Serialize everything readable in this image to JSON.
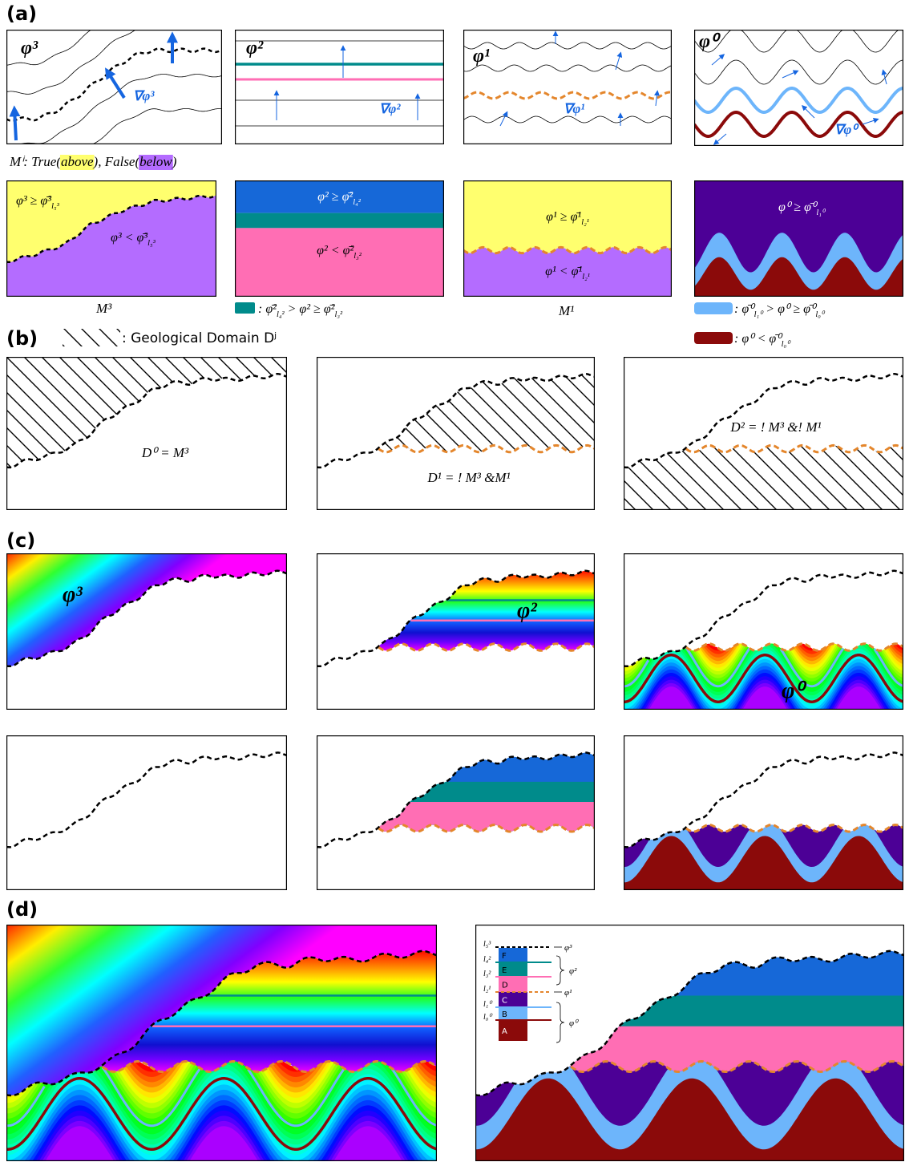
{
  "panel_labels": [
    "(a)",
    "(b)",
    "(c)",
    "(d)"
  ],
  "a": {
    "fields": [
      {
        "label": "φ³",
        "gradient": "∇φ³"
      },
      {
        "label": "φ²",
        "gradient": "∇φ²"
      },
      {
        "label": "φ¹",
        "gradient": "∇φ¹"
      },
      {
        "label": "φ⁰",
        "gradient": "∇φ⁰"
      }
    ],
    "mask_caption": [
      "Mⁱ: True(",
      "above",
      "), False(",
      "below",
      ")"
    ],
    "masks": [
      {
        "above": [
          "φ³ ≥ φ̄³",
          "l₅³"
        ],
        "below": [
          "φ³ < φ̄³",
          "l₅³"
        ],
        "caption": "M³"
      },
      {
        "above": [
          "φ² ≥ φ̄²",
          "l₄²"
        ],
        "below": [
          "φ² < φ̄²",
          "l₃²"
        ],
        "legend": [
          ": φ̄²",
          "l₄²",
          " > φ² ≥ φ̄²",
          "l₃²"
        ]
      },
      {
        "above": [
          "φ¹ ≥ φ̄¹",
          "l₂¹"
        ],
        "below": [
          "φ¹ < φ̄¹",
          "l₂¹"
        ],
        "caption": "M¹"
      },
      {
        "above": [
          "φ⁰ ≥ φ̄⁰",
          "l₁⁰"
        ],
        "legends": [
          [
            ": φ̄⁰",
            "l₁⁰",
            " > φ⁰ ≥ φ̄⁰",
            "l₀⁰"
          ],
          [
            ": φ⁰ < φ̄⁰",
            "l₀⁰"
          ]
        ]
      }
    ]
  },
  "b": {
    "legend": ": Geological Domain Dʲ",
    "domains": [
      "D⁰ = M³",
      "D¹ = ! M³ &M¹",
      "D² = ! M³ &! M¹"
    ]
  },
  "c": {
    "field_labels": [
      "φ³",
      "φ²",
      "φ⁰"
    ]
  },
  "d": {
    "legend": {
      "levels": [
        "l₅³",
        "l₄²",
        "l₃²",
        "l₂¹",
        "l₁⁰",
        "l₀⁰"
      ],
      "units": [
        "F",
        "E",
        "D",
        "C",
        "B",
        "A"
      ],
      "fields": [
        "φ³",
        "φ²",
        "φ¹",
        "φ⁰"
      ]
    }
  }
}
